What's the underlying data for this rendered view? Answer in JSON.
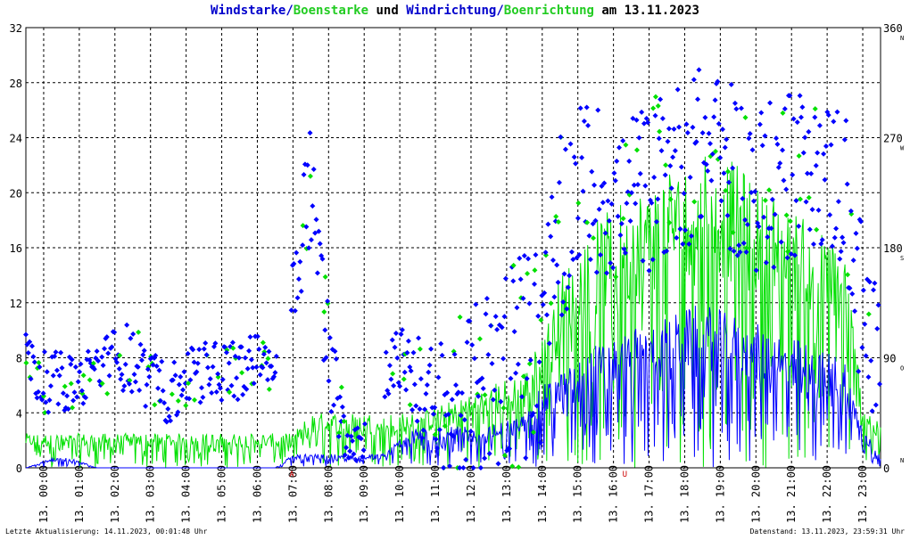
{
  "title": {
    "part1": "Windstarke",
    "sep1": "/",
    "part2": "Boenstarke",
    "part3": " und ",
    "part4": "Windrichtung",
    "sep2": "/",
    "part5": "Boenrichtung",
    "part6": " am 13.11.2023"
  },
  "footer": {
    "left": "Letzte Aktualisierung: 14.11.2023, 00:01:48 Uhr",
    "right": "Datenstand: 13.11.2023, 23:59:31 Uhr"
  },
  "colors": {
    "wind": "#0000ff",
    "gust": "#00e000",
    "grid": "#000000",
    "marker": "#cc0000",
    "background": "#ffffff"
  },
  "chart_data": {
    "type": "line",
    "x_ticks": [
      "13. 00:00",
      "13. 01:00",
      "13. 02:00",
      "13. 03:00",
      "13. 04:00",
      "13. 05:00",
      "13. 06:00",
      "13. 07:00",
      "13. 08:00",
      "13. 09:00",
      "13. 10:00",
      "13. 11:00",
      "13. 12:00",
      "13. 13:00",
      "13. 14:00",
      "13. 15:00",
      "13. 16:00",
      "13. 17:00",
      "13. 18:00",
      "13. 19:00",
      "13. 20:00",
      "13. 21:00",
      "13. 22:00",
      "13. 23:00"
    ],
    "xlim_hours": [
      0,
      24
    ],
    "y_left": {
      "ticks": [
        0,
        4,
        8,
        12,
        16,
        20,
        24,
        28,
        32
      ],
      "lim": [
        0,
        32
      ]
    },
    "y_right": {
      "ticks": [
        0,
        90,
        180,
        270,
        360
      ],
      "lim": [
        0,
        360
      ],
      "compass": [
        "N",
        "O",
        "S",
        "W",
        "N"
      ]
    },
    "markers": [
      {
        "label": "A",
        "hour": 7.4
      },
      {
        "label": "U",
        "hour": 16.75
      }
    ],
    "wind_speed_profile": {
      "hours": [
        0,
        1,
        2,
        3,
        4,
        5,
        6,
        7,
        7.5,
        8,
        9,
        10,
        11,
        12,
        13,
        14,
        14.5,
        15,
        16,
        17,
        18,
        19,
        20,
        21,
        22,
        23,
        23.5,
        24
      ],
      "max": [
        0,
        1,
        0,
        0,
        0,
        0,
        0,
        0,
        1,
        1,
        1,
        1,
        3,
        3,
        3,
        4,
        6,
        7,
        9,
        10,
        11,
        12,
        11,
        10,
        9,
        8,
        3,
        1
      ]
    },
    "gust_speed_profile": {
      "hours": [
        0,
        1,
        2,
        3,
        4,
        5,
        6,
        7,
        7.5,
        8,
        9,
        10,
        11,
        12,
        13,
        14,
        14.5,
        15,
        16,
        17,
        18,
        19,
        20,
        21,
        22,
        23,
        23.5,
        24
      ],
      "max": [
        2.5,
        2.5,
        2.5,
        2.5,
        2.5,
        2.5,
        2.5,
        2.5,
        2.5,
        4,
        4,
        4,
        4,
        5,
        6,
        7,
        10,
        14,
        18,
        20,
        22,
        24,
        22,
        20,
        18,
        16,
        5,
        3
      ]
    },
    "direction_profile": {
      "hours": [
        0,
        0.5,
        1,
        1.5,
        2,
        2.5,
        3,
        3.5,
        4,
        4.5,
        5,
        5.5,
        6,
        6.5,
        7,
        7.5,
        8,
        8.5,
        9,
        9.5,
        10,
        10.5,
        11,
        11.5,
        12,
        12.5,
        13,
        13.5,
        14,
        14.5,
        15,
        15.5,
        16,
        16.5,
        17,
        17.5,
        18,
        18.5,
        19,
        19.5,
        20,
        20.5,
        21,
        21.5,
        22,
        22.5,
        23,
        23.5,
        24
      ],
      "center": [
        90,
        70,
        70,
        70,
        80,
        90,
        90,
        70,
        60,
        70,
        80,
        80,
        80,
        90,
        80,
        150,
        240,
        90,
        30,
        20,
        80,
        90,
        70,
        40,
        40,
        50,
        70,
        90,
        90,
        100,
        190,
        230,
        230,
        220,
        220,
        230,
        240,
        250,
        260,
        250,
        240,
        230,
        230,
        240,
        240,
        240,
        230,
        120,
        90
      ],
      "spread": [
        20,
        25,
        25,
        20,
        25,
        25,
        30,
        25,
        25,
        25,
        25,
        25,
        25,
        20,
        20,
        40,
        60,
        40,
        25,
        20,
        25,
        25,
        40,
        60,
        80,
        80,
        80,
        90,
        90,
        90,
        80,
        70,
        70,
        70,
        70,
        70,
        70,
        70,
        70,
        70,
        70,
        70,
        70,
        70,
        60,
        60,
        80,
        80,
        40
      ]
    },
    "legend": [
      {
        "name": "Windstarke",
        "color": "#0000ff"
      },
      {
        "name": "Boenstarke",
        "color": "#00e000"
      },
      {
        "name": "Windrichtung",
        "color": "#0000ff"
      },
      {
        "name": "Boenrichtung",
        "color": "#00e000"
      }
    ],
    "grid": true
  }
}
